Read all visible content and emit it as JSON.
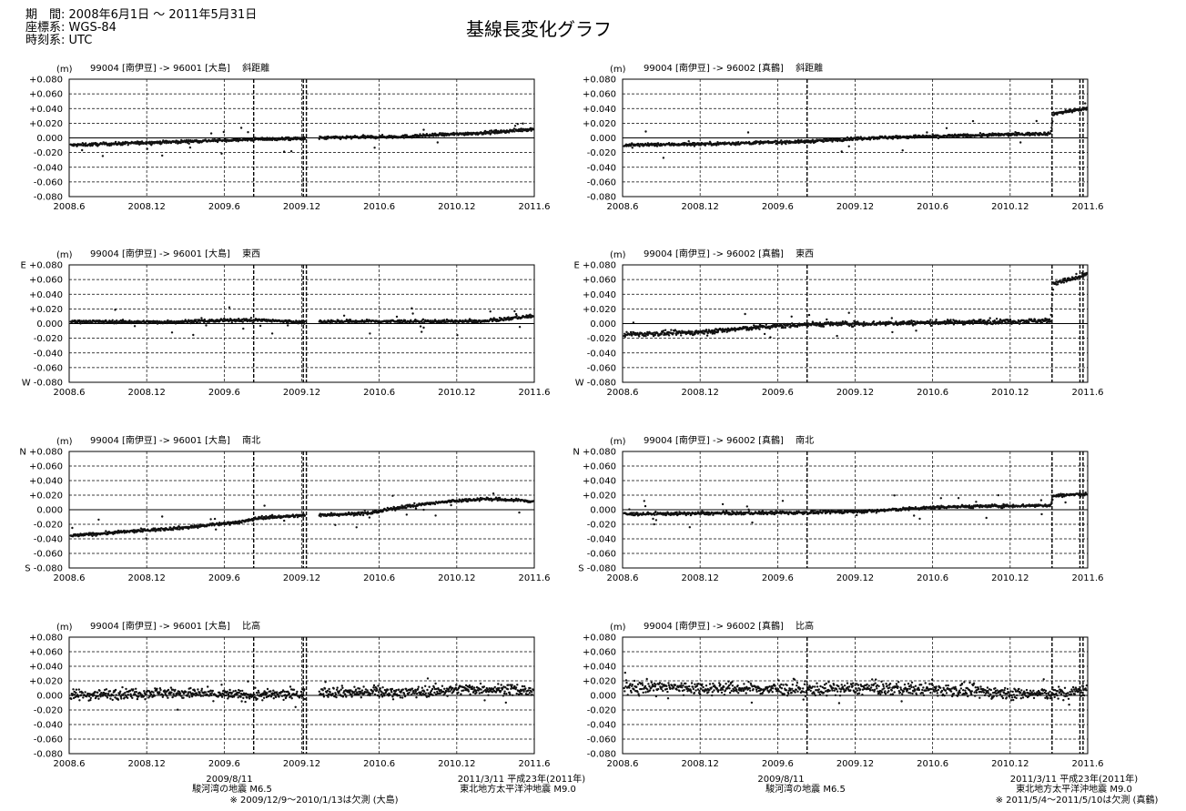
{
  "header": {
    "period": "期　間: 2008年6月1日 ～ 2011年5月31日",
    "coord": "座標系: WGS-84",
    "time": "時刻系: UTC",
    "title": "基線長変化グラフ"
  },
  "annotations": {
    "left_eq1_date": "2009/8/11",
    "left_eq1_name": "駿河湾の地震  M6.5",
    "left_missing": "※ 2009/12/9～2010/1/13は欠測 (大島)",
    "left_eq2_date": "2011/3/11  平成23年(2011年)",
    "left_eq2_name": "東北地方太平洋沖地震  M9.0",
    "right_eq1_date": "2009/8/11",
    "right_eq1_name": "駿河湾の地震  M6.5",
    "right_eq2_date": "2011/3/11  平成23年(2011年)",
    "right_eq2_name": "東北地方太平洋沖地震  M9.0",
    "right_missing": "※ 2011/5/4～2011/5/10は欠測 (真鶴)"
  },
  "chart_data": [
    {
      "type": "scatter",
      "title": "99004 [南伊豆] -> 96001 [大島]　 斜距離",
      "ylabel": "(m)",
      "ylim": [
        -0.08,
        0.08
      ],
      "gap": [
        2009.94,
        2010.03
      ],
      "knots": [
        [
          2008.42,
          -0.01
        ],
        [
          2009.0,
          -0.006
        ],
        [
          2009.6,
          -0.002
        ],
        [
          2009.93,
          -0.001
        ],
        [
          2010.05,
          0.0
        ],
        [
          2010.6,
          0.002
        ],
        [
          2011.1,
          0.007
        ],
        [
          2011.3,
          0.01
        ],
        [
          2011.45,
          0.013
        ]
      ],
      "noise": 0.002,
      "yticks": [
        "+0.080",
        "+0.060",
        "+0.040",
        "+0.020",
        "0.000",
        "-0.020",
        "-0.040",
        "-0.060",
        "-0.080"
      ]
    },
    {
      "type": "scatter",
      "title": "99004 [南伊豆] -> 96002 [真鶴]　 斜距離",
      "ylabel": "(m)",
      "ylim": [
        -0.08,
        0.08
      ],
      "knots": [
        [
          2008.42,
          -0.01
        ],
        [
          2009.0,
          -0.008
        ],
        [
          2009.6,
          -0.005
        ],
        [
          2010.0,
          0.0
        ],
        [
          2010.6,
          0.003
        ],
        [
          2011.18,
          0.006
        ],
        [
          2011.2,
          0.033
        ],
        [
          2011.35,
          0.038
        ],
        [
          2011.45,
          0.04
        ]
      ],
      "noise": 0.002,
      "yticks": [
        "+0.080",
        "+0.060",
        "+0.040",
        "+0.020",
        "0.000",
        "-0.020",
        "-0.040",
        "-0.060",
        "-0.080"
      ]
    },
    {
      "type": "scatter",
      "title": "99004 [南伊豆] -> 96001 [大島]　 東西",
      "ylabel": "(m)",
      "ylim": [
        -0.08,
        0.08
      ],
      "gap": [
        2009.94,
        2010.03
      ],
      "knots": [
        [
          2008.42,
          0.003
        ],
        [
          2009.0,
          0.002
        ],
        [
          2009.6,
          0.005
        ],
        [
          2009.93,
          0.002
        ],
        [
          2010.05,
          0.003
        ],
        [
          2010.7,
          0.003
        ],
        [
          2011.1,
          0.003
        ],
        [
          2011.3,
          0.008
        ],
        [
          2011.45,
          0.011
        ]
      ],
      "noise": 0.002,
      "yticks": [
        "E +0.080",
        "+0.060",
        "+0.040",
        "+0.020",
        "0.000",
        "-0.020",
        "-0.040",
        "-0.060",
        "W -0.080"
      ]
    },
    {
      "type": "scatter",
      "title": "99004 [南伊豆] -> 96002 [真鶴]　 東西",
      "ylabel": "(m)",
      "ylim": [
        -0.08,
        0.08
      ],
      "knots": [
        [
          2008.42,
          -0.015
        ],
        [
          2008.9,
          -0.012
        ],
        [
          2009.3,
          -0.005
        ],
        [
          2009.6,
          -0.001
        ],
        [
          2010.0,
          0.0
        ],
        [
          2010.6,
          0.002
        ],
        [
          2011.18,
          0.004
        ],
        [
          2011.2,
          0.055
        ],
        [
          2011.35,
          0.062
        ],
        [
          2011.45,
          0.07
        ]
      ],
      "noise": 0.003,
      "yticks": [
        "E +0.080",
        "+0.060",
        "+0.040",
        "+0.020",
        "0.000",
        "-0.020",
        "-0.040",
        "-0.060",
        "W -0.080"
      ]
    },
    {
      "type": "scatter",
      "title": "99004 [南伊豆] -> 96001 [大島]　 南北",
      "ylabel": "(m)",
      "ylim": [
        -0.08,
        0.08
      ],
      "gap": [
        2009.94,
        2010.03
      ],
      "knots": [
        [
          2008.42,
          -0.036
        ],
        [
          2008.8,
          -0.03
        ],
        [
          2009.2,
          -0.024
        ],
        [
          2009.55,
          -0.016
        ],
        [
          2009.65,
          -0.011
        ],
        [
          2009.93,
          -0.008
        ],
        [
          2010.05,
          -0.007
        ],
        [
          2010.35,
          -0.005
        ],
        [
          2010.6,
          0.005
        ],
        [
          2010.9,
          0.012
        ],
        [
          2011.1,
          0.015
        ],
        [
          2011.3,
          0.013
        ],
        [
          2011.45,
          0.011
        ]
      ],
      "noise": 0.002,
      "yticks": [
        "N +0.080",
        "+0.060",
        "+0.040",
        "+0.020",
        "0.000",
        "-0.020",
        "-0.040",
        "-0.060",
        "S -0.080"
      ]
    },
    {
      "type": "scatter",
      "title": "99004 [南伊豆] -> 96002 [真鶴]　 南北",
      "ylabel": "(m)",
      "ylim": [
        -0.08,
        0.08
      ],
      "knots": [
        [
          2008.42,
          -0.006
        ],
        [
          2009.0,
          -0.005
        ],
        [
          2009.6,
          -0.004
        ],
        [
          2010.0,
          -0.002
        ],
        [
          2010.5,
          0.004
        ],
        [
          2011.18,
          0.006
        ],
        [
          2011.2,
          0.019
        ],
        [
          2011.35,
          0.021
        ],
        [
          2011.45,
          0.021
        ]
      ],
      "noise": 0.002,
      "yticks": [
        "N +0.080",
        "+0.060",
        "+0.040",
        "+0.020",
        "0.000",
        "-0.020",
        "-0.040",
        "-0.060",
        "S -0.080"
      ]
    },
    {
      "type": "scatter",
      "title": "99004 [南伊豆] -> 96001 [大島]　 比高",
      "ylabel": "(m)",
      "ylim": [
        -0.08,
        0.08
      ],
      "gap": [
        2009.94,
        2010.03
      ],
      "knots": [
        [
          2008.42,
          0.0
        ],
        [
          2009.0,
          0.004
        ],
        [
          2009.6,
          0.0
        ],
        [
          2009.93,
          0.002
        ],
        [
          2010.05,
          0.005
        ],
        [
          2010.6,
          0.004
        ],
        [
          2011.0,
          0.009
        ],
        [
          2011.3,
          0.008
        ],
        [
          2011.45,
          0.004
        ]
      ],
      "noise": 0.007,
      "yticks": [
        "+0.080",
        "+0.060",
        "+0.040",
        "+0.020",
        "0.000",
        "-0.020",
        "-0.040",
        "-0.060",
        "-0.080"
      ]
    },
    {
      "type": "scatter",
      "title": "99004 [南伊豆] -> 96002 [真鶴]　 比高",
      "ylabel": "(m)",
      "ylim": [
        -0.08,
        0.08
      ],
      "knots": [
        [
          2008.42,
          0.012
        ],
        [
          2009.0,
          0.01
        ],
        [
          2009.6,
          0.008
        ],
        [
          2010.0,
          0.01
        ],
        [
          2010.6,
          0.007
        ],
        [
          2011.0,
          0.002
        ],
        [
          2011.3,
          0.003
        ],
        [
          2011.45,
          0.01
        ]
      ],
      "noise": 0.008,
      "yticks": [
        "+0.080",
        "+0.060",
        "+0.040",
        "+0.020",
        "0.000",
        "-0.020",
        "-0.040",
        "-0.060",
        "-0.080"
      ]
    }
  ],
  "xaxis": {
    "ticks": [
      2008.42,
      2008.92,
      2009.42,
      2009.92,
      2010.42,
      2010.92,
      2011.42
    ],
    "labels": [
      "2008.6",
      "2008.12",
      "2009.6",
      "2009.12",
      "2010.6",
      "2010.12",
      "2011.6"
    ],
    "range": [
      2008.42,
      2011.42
    ]
  },
  "events": {
    "left": [
      2009.61,
      2009.93,
      2009.95
    ],
    "right": [
      2009.61,
      2011.19,
      2011.37,
      2011.39
    ]
  }
}
